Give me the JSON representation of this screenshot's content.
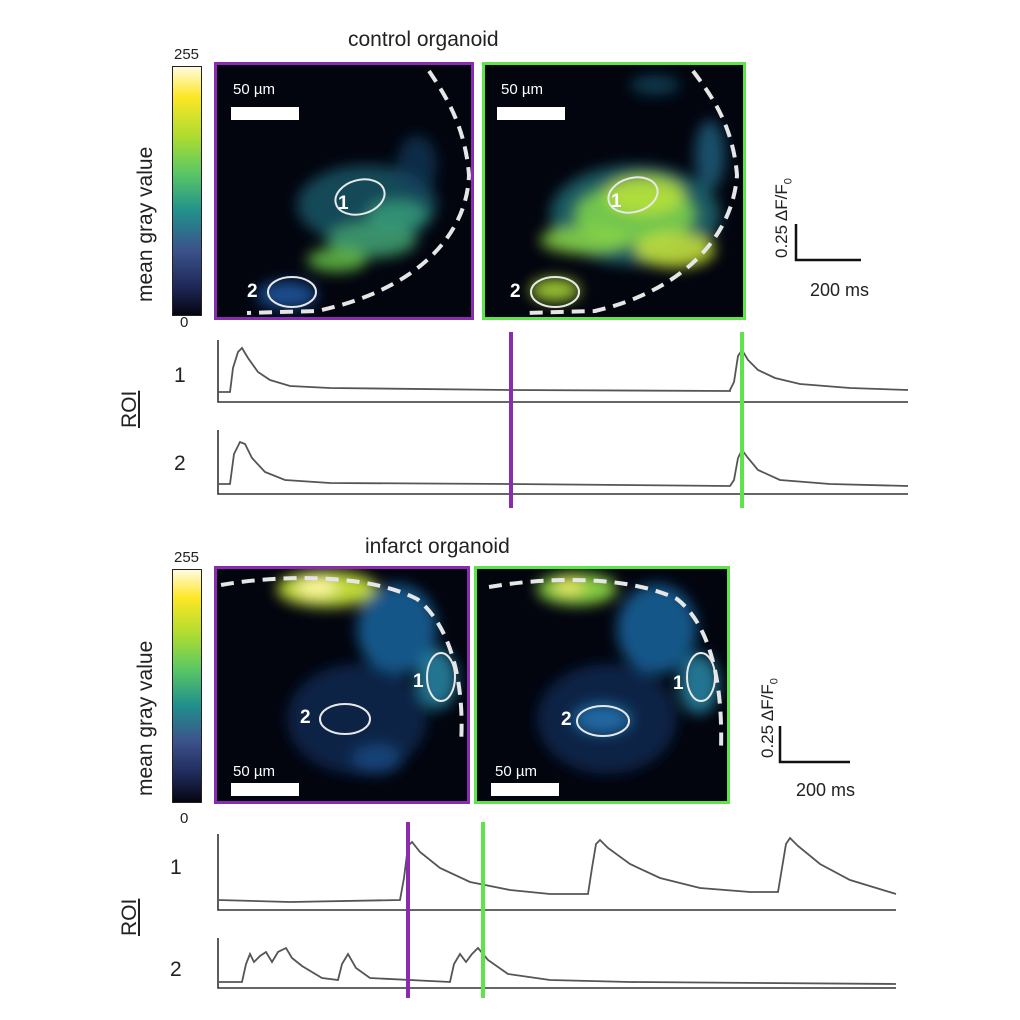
{
  "control": {
    "title": "control organoid",
    "colorbar": {
      "label": "mean gray value",
      "max": "255",
      "min": "0"
    },
    "scale_bar_label": "50 µm",
    "roi_labels": [
      "1",
      "2"
    ],
    "trace_axis_label": "ROI",
    "scale": {
      "y_value": "0.25",
      "y_unit": "ΔF/F",
      "y_unit_sub": "0",
      "x_label": "200 ms"
    }
  },
  "infarct": {
    "title": "infarct organoid",
    "colorbar": {
      "label": "mean gray value",
      "max": "255",
      "min": "0"
    },
    "scale_bar_label": "50 µm",
    "roi_labels": [
      "1",
      "2"
    ],
    "trace_axis_label": "ROI",
    "scale": {
      "y_value": "0.25",
      "y_unit": "ΔF/F",
      "y_unit_sub": "0",
      "x_label": "200 ms"
    }
  },
  "colors": {
    "frame_a": "#8a2bb0",
    "frame_b": "#5fe34a",
    "trace": "#555555",
    "background": "#02040e"
  }
}
